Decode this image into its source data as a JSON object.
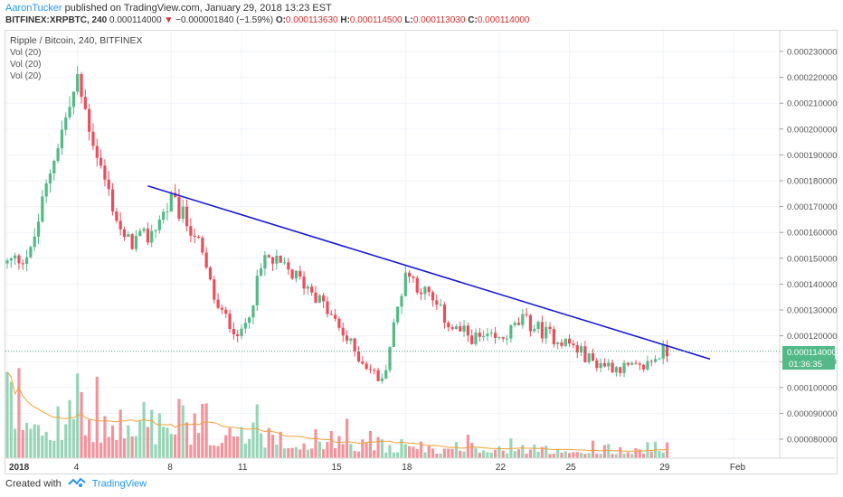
{
  "header": {
    "author": "AaronTucker",
    "published_text": " published on TradingView.com, January 29, 2018 13:23 EST",
    "symbol": "BITFINEX:XRPBTC, 240",
    "last": "0.000114000",
    "change": "−0.000001840 (−1.59%)",
    "o_label": "O:",
    "o": "0.000113630",
    "h_label": "H:",
    "h": "0.000114500",
    "l_label": "L:",
    "l": "0.000113030",
    "c_label": "C:",
    "c": "0.000114000"
  },
  "legend": {
    "title": "Ripple / Bitcoin, 240, BITFINEX",
    "indicators": [
      "Vol (20)",
      "Vol (20)",
      "Vol (20)"
    ]
  },
  "price_axis": {
    "labels": [
      "0.000230000",
      "0.000220000",
      "0.000210000",
      "0.000200000",
      "0.000190000",
      "0.000180000",
      "0.000170000",
      "0.000160000",
      "0.000150000",
      "0.000140000",
      "0.000130000",
      "0.000120000",
      "0.000110000",
      "0.000100000",
      "0.000090000",
      "0.000080000"
    ],
    "current_price": "0.000114000",
    "countdown": "01:36:35"
  },
  "time_axis": {
    "labels": [
      "2018",
      "4",
      "8",
      "11",
      "15",
      "18",
      "22",
      "25",
      "29",
      "Feb"
    ]
  },
  "footer": {
    "created_with": "Created with",
    "brand": "TradingView"
  },
  "colors": {
    "up": "#53b987",
    "down": "#eb4d5c",
    "trendline": "#1a1ad8",
    "ma": "#f4a13c",
    "current_line": "#4aa37c",
    "accent": "#2196f3"
  },
  "chart_data": {
    "type": "candlestick",
    "x_range": [
      "2018-01-01",
      "2018-02-01"
    ],
    "ylim": [
      7.35e-05,
      0.000236
    ],
    "trendline": {
      "start": [
        "2018-01-07",
        0.000178
      ],
      "end": [
        "2018-01-31",
        0.000111
      ]
    },
    "anchors": [
      [
        "2018-01-01",
        0.000148
      ],
      [
        "2018-01-02",
        0.000152
      ],
      [
        "2018-01-03",
        0.00019
      ],
      [
        "2018-01-04",
        0.000218
      ],
      [
        "2018-01-05",
        0.000185
      ],
      [
        "2018-01-06",
        0.000156
      ],
      [
        "2018-01-07",
        0.000158
      ],
      [
        "2018-01-08",
        0.000172
      ],
      [
        "2018-01-09",
        0.00016
      ],
      [
        "2018-01-10",
        0.00013
      ],
      [
        "2018-01-11",
        0.00012
      ],
      [
        "2018-01-12",
        0.00015
      ],
      [
        "2018-01-13",
        0.000145
      ],
      [
        "2018-01-14",
        0.000138
      ],
      [
        "2018-01-15",
        0.000125
      ],
      [
        "2018-01-16",
        0.000112
      ],
      [
        "2018-01-17",
        0.000102
      ],
      [
        "2018-01-18",
        0.000145
      ],
      [
        "2018-01-19",
        0.000135
      ],
      [
        "2018-01-20",
        0.000123
      ],
      [
        "2018-01-21",
        0.000119
      ],
      [
        "2018-01-22",
        0.000118
      ],
      [
        "2018-01-23",
        0.000126
      ],
      [
        "2018-01-24",
        0.000121
      ],
      [
        "2018-01-25",
        0.000117
      ],
      [
        "2018-01-26",
        0.00011
      ],
      [
        "2018-01-27",
        0.000108
      ],
      [
        "2018-01-28",
        0.000107
      ],
      [
        "2018-01-29",
        0.000114
      ]
    ]
  }
}
